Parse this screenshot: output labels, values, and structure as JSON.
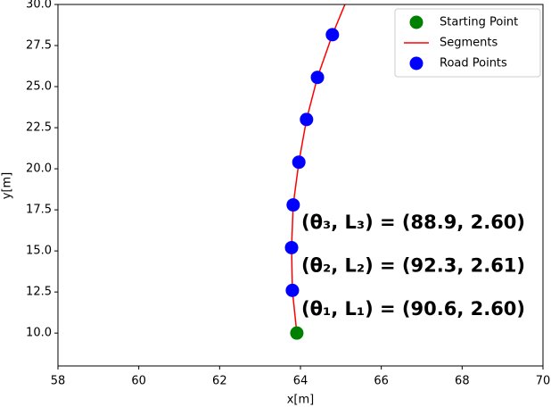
{
  "chart_data": {
    "type": "scatter",
    "xlabel": "x[m]",
    "ylabel": "y[m]",
    "xlim": [
      58,
      70
    ],
    "xticks": [
      58,
      60,
      62,
      64,
      66,
      68,
      70
    ],
    "ylim": [
      8,
      30
    ],
    "yticks": [
      {
        "value": 10,
        "label": "10.0"
      },
      {
        "value": 12.5,
        "label": "12.5"
      },
      {
        "value": 15,
        "label": "15.0"
      },
      {
        "value": 17.5,
        "label": "17.5"
      },
      {
        "value": 20,
        "label": "20.0"
      },
      {
        "value": 22.5,
        "label": "22.5"
      },
      {
        "value": 25,
        "label": "25.0"
      },
      {
        "value": 27.5,
        "label": "27.5"
      },
      {
        "value": 30,
        "label": "30.0"
      }
    ],
    "legend": "upper right",
    "series": [
      {
        "name": "Starting Point",
        "color": "#008000",
        "style": "marker",
        "x": [
          63.91
        ],
        "values": [
          10.0
        ]
      },
      {
        "name": "Segments",
        "color": "#ff0000",
        "style": "line",
        "x": [
          63.91,
          63.8,
          63.78,
          63.82,
          63.96,
          64.15,
          64.42,
          64.79,
          65.1
        ],
        "values": [
          10.0,
          12.6,
          15.2,
          17.8,
          20.4,
          23.0,
          25.56,
          28.16,
          30.0
        ]
      },
      {
        "name": "Road Points",
        "color": "#0000ff",
        "style": "marker",
        "x": [
          63.8,
          63.78,
          63.82,
          63.96,
          64.15,
          64.42,
          64.79
        ],
        "values": [
          12.6,
          15.2,
          17.8,
          20.4,
          23.0,
          25.56,
          28.16
        ]
      }
    ],
    "annotations": [
      "(θ₃, L₃) = (88.9, 2.60)",
      "(θ₂, L₂) = (92.3, 2.61)",
      "(θ₁, L₁) = (90.6, 2.60)"
    ]
  }
}
